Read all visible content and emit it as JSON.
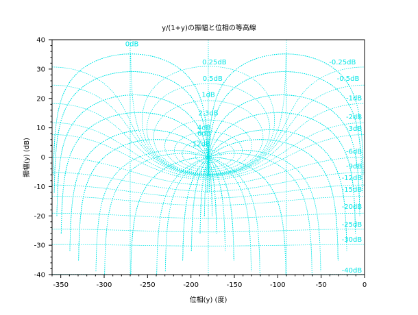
{
  "chart_data": {
    "type": "nichols-chart",
    "title": "y/(1+y)の振幅と位相の等高線",
    "xlabel": "位相(y) (度)",
    "ylabel": "振幅(y) (dB)",
    "xlim": [
      -360,
      0
    ],
    "ylim": [
      -40,
      40
    ],
    "xticks": [
      -350,
      -300,
      -250,
      -200,
      -150,
      -100,
      -50,
      0
    ],
    "yticks": [
      -40,
      -30,
      -20,
      -10,
      0,
      10,
      20,
      30,
      40
    ],
    "gain_contours_db": [
      12,
      6,
      4,
      2.3,
      1,
      0.5,
      0.25,
      0,
      -0.25,
      -0.5,
      -1,
      -2,
      -3,
      -6,
      -9,
      -12,
      -15,
      -20,
      -25,
      -30,
      -40
    ],
    "gain_labels": [
      {
        "text": "12dB",
        "db": 12
      },
      {
        "text": "6dB",
        "db": 6
      },
      {
        "text": "4dB",
        "db": 4
      },
      {
        "text": "2.3dB",
        "db": 2.3
      },
      {
        "text": "1dB",
        "db": 1
      },
      {
        "text": "0.5dB",
        "db": 0.5
      },
      {
        "text": "0.25dB",
        "db": 0.25
      },
      {
        "text": "0dB",
        "db": 0
      },
      {
        "text": "-0.25dB",
        "db": -0.25
      },
      {
        "text": "-0.5dB",
        "db": -0.5
      },
      {
        "text": "-1dB",
        "db": -1
      },
      {
        "text": "-2dB",
        "db": -2
      },
      {
        "text": "-3dB",
        "db": -3
      },
      {
        "text": "-6dB",
        "db": -6
      },
      {
        "text": "-9dB",
        "db": -9
      },
      {
        "text": "-12dB",
        "db": -12
      },
      {
        "text": "-15dB",
        "db": -15
      },
      {
        "text": "-20dB",
        "db": -20
      },
      {
        "text": "-25dB",
        "db": -25
      },
      {
        "text": "-30dB",
        "db": -30
      },
      {
        "text": "-40dB",
        "db": -40
      }
    ],
    "phase_contours_deg": [
      -1,
      -2,
      -5,
      -10,
      -20,
      -30,
      -50,
      -90,
      -120,
      -150,
      -160,
      -170,
      -175,
      -178,
      -179
    ],
    "grid": false,
    "contour_color": "#00e5e5",
    "axis_color": "#000000"
  }
}
